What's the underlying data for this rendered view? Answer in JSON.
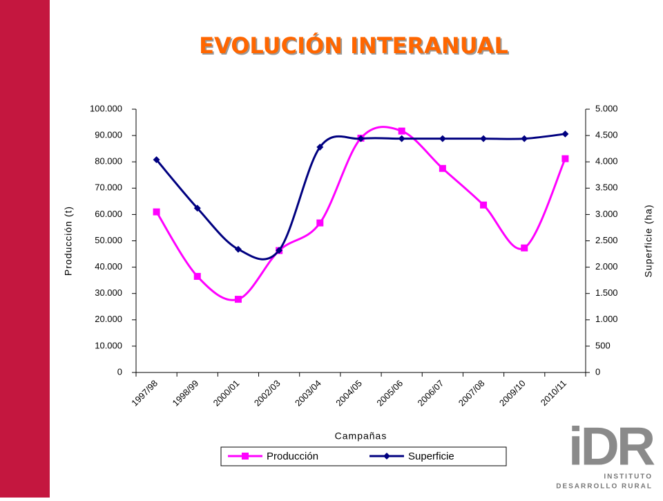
{
  "chart_data": {
    "type": "line",
    "title": "EVOLUCIÓN INTERANUAL",
    "x_label": "Campañas",
    "y_label": "Producción (t)",
    "y2_label": "Superficie (ha)",
    "categories": [
      "1997/98",
      "1998/99",
      "2000/01",
      "2002/03",
      "2003/04",
      "2004/05",
      "2005/06",
      "2006/07",
      "2007/08",
      "2009/10",
      "2010/11"
    ],
    "series": [
      {
        "name": "Producción",
        "color": "#ff00ff",
        "marker": "square",
        "axis": "y",
        "values": [
          61000,
          36500,
          27800,
          46300,
          56800,
          89000,
          91700,
          77500,
          63600,
          47300,
          81200
        ]
      },
      {
        "name": "Superficie",
        "color": "#000080",
        "marker": "diamond",
        "axis": "y2",
        "values": [
          4040,
          3120,
          2340,
          2320,
          4280,
          4440,
          4440,
          4440,
          4440,
          4440,
          4530
        ]
      }
    ],
    "ylim": [
      0,
      100000
    ],
    "yticks": [
      0,
      {
        "value": 10000,
        "label": "10.000"
      },
      {
        "value": 20000,
        "label": "20.000"
      },
      {
        "value": 30000,
        "label": "30.000"
      },
      {
        "value": 40000,
        "label": "40.000"
      },
      {
        "value": 50000,
        "label": "50.000"
      },
      {
        "value": 60000,
        "label": "60.000"
      },
      {
        "value": 70000,
        "label": "70.000"
      },
      {
        "value": 80000,
        "label": "80.000"
      },
      {
        "value": 90000,
        "label": "90.000"
      },
      {
        "value": 100000,
        "label": "100.000"
      }
    ],
    "y2lim": [
      0,
      5000
    ],
    "y2ticks": [
      0,
      500,
      {
        "value": 1000,
        "label": "1.000"
      },
      {
        "value": 1500,
        "label": "1.500"
      },
      {
        "value": 2000,
        "label": "2.000"
      },
      {
        "value": 2500,
        "label": "2.500"
      },
      {
        "value": 3000,
        "label": "3.000"
      },
      {
        "value": 3500,
        "label": "3.500"
      },
      {
        "value": 4000,
        "label": "4.000"
      },
      {
        "value": 4500,
        "label": "4.500"
      },
      {
        "value": 5000,
        "label": "5.000"
      }
    ],
    "smooth": true,
    "legend": "bottom"
  },
  "logo": {
    "mark": "iDR",
    "line1": "INSTITUTO",
    "line2": "DESARROLLO RURAL"
  }
}
